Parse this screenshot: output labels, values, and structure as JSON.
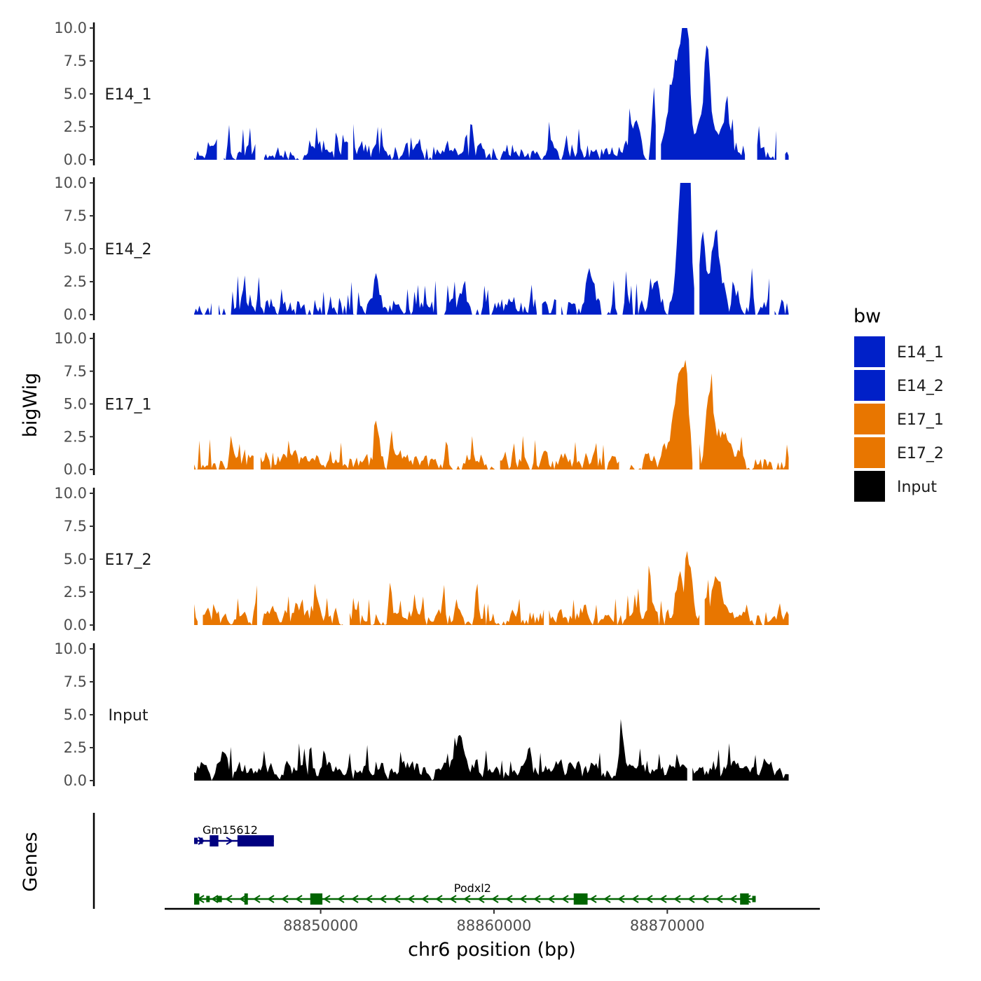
{
  "chart_data": {
    "type": "area",
    "chrom": "chr6",
    "x_range": [
      88842700,
      88877000
    ],
    "xlim": [
      88841000,
      88878800
    ],
    "x_ticks": [
      88850000,
      88860000,
      88870000
    ],
    "x_tick_labels": [
      "88850000",
      "88860000",
      "88870000"
    ],
    "xlabel": "chr6 position (bp)",
    "ylabel": "bigWig",
    "genes_label": "Genes",
    "ylim": [
      0,
      10
    ],
    "y_ticks": [
      0,
      2.5,
      5,
      7.5,
      10
    ],
    "y_tick_labels": [
      "0.0",
      "2.5",
      "5.0",
      "7.5",
      "10.0"
    ],
    "legend": {
      "title": "bw",
      "entries": [
        {
          "name": "E14_1",
          "color": "#0020C8"
        },
        {
          "name": "E14_2",
          "color": "#0020C8"
        },
        {
          "name": "E17_1",
          "color": "#E87600"
        },
        {
          "name": "E17_2",
          "color": "#E87600"
        },
        {
          "name": "Input",
          "color": "#000000"
        }
      ]
    },
    "series": [
      {
        "name": "E14_1",
        "color": "#0020C8",
        "seed": 11,
        "base": 0.55,
        "var": 0.6,
        "spikes": 0.12,
        "gaps": [
          [
            88844100,
            88844400
          ],
          [
            88846300,
            88846700
          ],
          [
            88851600,
            88851800
          ],
          [
            88869400,
            88869550
          ],
          [
            88874500,
            88875100
          ],
          [
            88876300,
            88876700
          ]
        ],
        "peaks": [
          [
            88870400,
            5.5,
            350
          ],
          [
            88871100,
            8.4,
            150
          ],
          [
            88870900,
            6.0,
            250
          ],
          [
            88872300,
            5.6,
            130
          ],
          [
            88872300,
            2.5,
            700
          ],
          [
            88869200,
            4.0,
            90
          ],
          [
            88868100,
            2.2,
            300
          ],
          [
            88844700,
            1.6,
            90
          ],
          [
            88873500,
            1.8,
            200
          ]
        ]
      },
      {
        "name": "E14_2",
        "color": "#0020C8",
        "seed": 23,
        "base": 0.5,
        "var": 0.7,
        "spikes": 0.13,
        "gaps": [
          [
            88843800,
            88844100
          ],
          [
            88844600,
            88844800
          ],
          [
            88862500,
            88862700
          ],
          [
            88863600,
            88863800
          ],
          [
            88867200,
            88867400
          ],
          [
            88871600,
            88871800
          ],
          [
            88875900,
            88876100
          ]
        ],
        "peaks": [
          [
            88870700,
            7.0,
            170
          ],
          [
            88870900,
            6.4,
            120
          ],
          [
            88871300,
            9.9,
            110
          ],
          [
            88871100,
            7.7,
            80
          ],
          [
            88872000,
            5.0,
            180
          ],
          [
            88872700,
            3.8,
            150
          ],
          [
            88873000,
            2.6,
            400
          ],
          [
            88853200,
            3.0,
            110
          ],
          [
            88865500,
            2.2,
            250
          ],
          [
            88874900,
            2.2,
            80
          ],
          [
            88869200,
            2.0,
            250
          ]
        ]
      },
      {
        "name": "E17_1",
        "color": "#E87600",
        "seed": 37,
        "base": 0.6,
        "var": 0.55,
        "spikes": 0.1,
        "gaps": [
          [
            88846200,
            88846500
          ],
          [
            88860100,
            88860300
          ],
          [
            88867300,
            88867800
          ],
          [
            88871500,
            88871800
          ]
        ],
        "peaks": [
          [
            88870700,
            3.8,
            260
          ],
          [
            88871100,
            5.5,
            140
          ],
          [
            88870500,
            2.8,
            400
          ],
          [
            88872400,
            3.4,
            180
          ],
          [
            88872900,
            2.2,
            500
          ],
          [
            88844800,
            2.4,
            80
          ],
          [
            88853300,
            2.4,
            130
          ],
          [
            88854100,
            2.0,
            90
          ]
        ]
      },
      {
        "name": "E17_2",
        "color": "#E87600",
        "seed": 53,
        "base": 0.6,
        "var": 0.6,
        "spikes": 0.12,
        "gaps": [
          [
            88843000,
            88843200
          ],
          [
            88846400,
            88846600
          ],
          [
            88851300,
            88851600
          ],
          [
            88862900,
            88863100
          ],
          [
            88871900,
            88872100
          ]
        ],
        "peaks": [
          [
            88870700,
            3.2,
            200
          ],
          [
            88871300,
            4.0,
            130
          ],
          [
            88871100,
            3.3,
            80
          ],
          [
            88869000,
            3.2,
            80
          ],
          [
            88872900,
            2.4,
            450
          ],
          [
            88846300,
            2.3,
            80
          ],
          [
            88849800,
            1.6,
            250
          ],
          [
            88854000,
            2.5,
            110
          ],
          [
            88857100,
            2.5,
            90
          ],
          [
            88859000,
            2.3,
            90
          ]
        ]
      },
      {
        "name": "Input",
        "color": "#000000",
        "seed": 71,
        "base": 0.8,
        "var": 0.5,
        "spikes": 0.08,
        "gaps": [
          [
            88871200,
            88871400
          ]
        ],
        "peaks": [
          [
            88867400,
            3.1,
            120
          ],
          [
            88858000,
            2.3,
            200
          ],
          [
            88844400,
            1.8,
            200
          ],
          [
            88862000,
            2.0,
            150
          ]
        ]
      }
    ],
    "genes": [
      {
        "name": "Gm15612",
        "strand": "+",
        "color": "#000080",
        "start": 88842700,
        "end": 88847300,
        "exons": [
          [
            88842700,
            88842900,
            "thin"
          ],
          [
            88843000,
            88843200,
            "thin"
          ],
          [
            88843600,
            88844100,
            "thick"
          ],
          [
            88845200,
            88847300,
            "thick"
          ]
        ]
      },
      {
        "name": "Podxl2",
        "strand": "-",
        "color": "#006400",
        "start": 88842700,
        "end": 88875100,
        "exons": [
          [
            88842700,
            88843000,
            "thick"
          ],
          [
            88843400,
            88843600,
            "thin"
          ],
          [
            88844000,
            88844300,
            "thin"
          ],
          [
            88845600,
            88845800,
            "thick"
          ],
          [
            88849400,
            88850100,
            "thick"
          ],
          [
            88864600,
            88865400,
            "thick"
          ],
          [
            88874200,
            88874700,
            "thick"
          ],
          [
            88874900,
            88875100,
            "thin"
          ]
        ]
      }
    ]
  }
}
